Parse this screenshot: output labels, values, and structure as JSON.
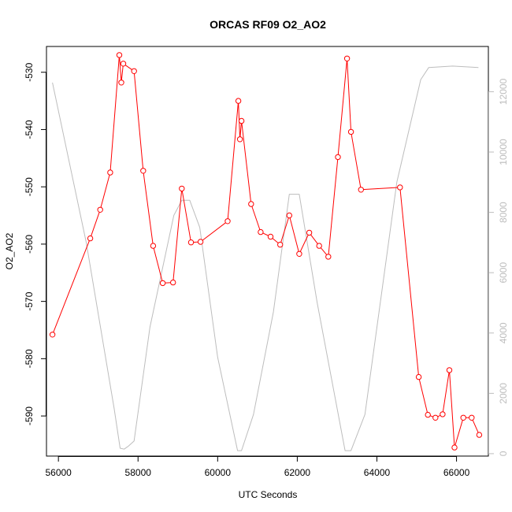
{
  "chart_data": {
    "type": "line",
    "title": "ORCAS RF09 O2_AO2",
    "xlabel": "UTC Seconds",
    "ylabel": "O2_AO2",
    "xlim": [
      55700,
      66800
    ],
    "ylim": [
      -597,
      -525.5
    ],
    "x_ticks": [
      56000,
      58000,
      60000,
      62000,
      64000,
      66000
    ],
    "y_ticks": [
      -590,
      -580,
      -570,
      -560,
      -550,
      -540,
      -530
    ],
    "y2lim": [
      -80,
      13500
    ],
    "y2_ticks": [
      0,
      2000,
      4000,
      6000,
      8000,
      10000,
      12000
    ],
    "series": [
      {
        "axis": "left",
        "color": "#ff0000",
        "markers": "open-circle",
        "x": [
          55850,
          56800,
          57050,
          57300,
          57530,
          57580,
          57630,
          57900,
          58130,
          58380,
          58620,
          58880,
          59100,
          59330,
          59570,
          60250,
          60520,
          60560,
          60600,
          60840,
          61080,
          61330,
          61570,
          61800,
          62050,
          62300,
          62550,
          62780,
          63020,
          63250,
          63350,
          63600,
          64580,
          65050,
          65280,
          65470,
          65650,
          65820,
          65950,
          66170,
          66380,
          66570
        ],
        "y": [
          -575.8,
          -559.0,
          -554.0,
          -547.5,
          -527.0,
          -531.8,
          -528.5,
          -529.8,
          -547.2,
          -560.3,
          -566.8,
          -566.7,
          -550.3,
          -559.7,
          -559.6,
          -556.0,
          -535.0,
          -541.7,
          -538.5,
          -553.0,
          -557.9,
          -558.7,
          -560.1,
          -555.0,
          -561.7,
          -558.0,
          -560.3,
          -562.2,
          -544.8,
          -527.6,
          -540.4,
          -550.5,
          -550.1,
          -583.2,
          -589.8,
          -590.3,
          -589.7,
          -582.0,
          -595.5,
          -590.3,
          -590.3,
          -593.3
        ]
      },
      {
        "axis": "right",
        "color": "#bdbdbd",
        "markers": "none",
        "x": [
          55850,
          56700,
          57400,
          57550,
          57650,
          57750,
          57900,
          58300,
          58900,
          59100,
          59300,
          59550,
          60000,
          60500,
          60600,
          60900,
          61400,
          61800,
          62050,
          62500,
          63200,
          63350,
          63700,
          64500,
          65100,
          65300,
          65900,
          66300,
          66550
        ],
        "y": [
          12300,
          7000,
          1500,
          180,
          150,
          240,
          420,
          4200,
          7900,
          8400,
          8400,
          7500,
          3200,
          100,
          100,
          1300,
          4700,
          8600,
          8600,
          5000,
          100,
          100,
          1300,
          9000,
          12400,
          12800,
          12850,
          12820,
          12800
        ]
      }
    ]
  }
}
